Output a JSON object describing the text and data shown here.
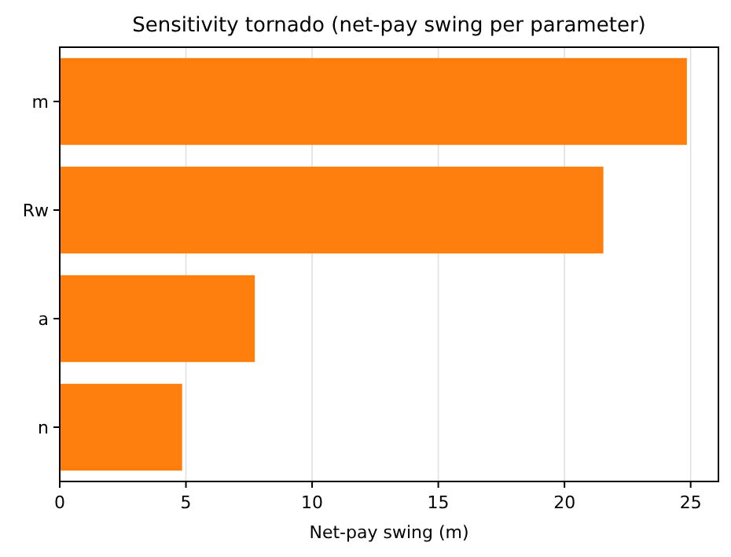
{
  "chart_data": {
    "type": "bar",
    "orientation": "horizontal",
    "title": "Sensitivity tornado (net-pay swing per parameter)",
    "xlabel": "Net-pay swing (m)",
    "categories": [
      "m",
      "Rw",
      "a",
      "n"
    ],
    "values": [
      24.85,
      21.54,
      7.73,
      4.85
    ],
    "color": "#ff7f0e",
    "xlim": [
      0,
      26.1
    ],
    "xticks": [
      0,
      5,
      10,
      15,
      20,
      25
    ],
    "grid": "x"
  }
}
